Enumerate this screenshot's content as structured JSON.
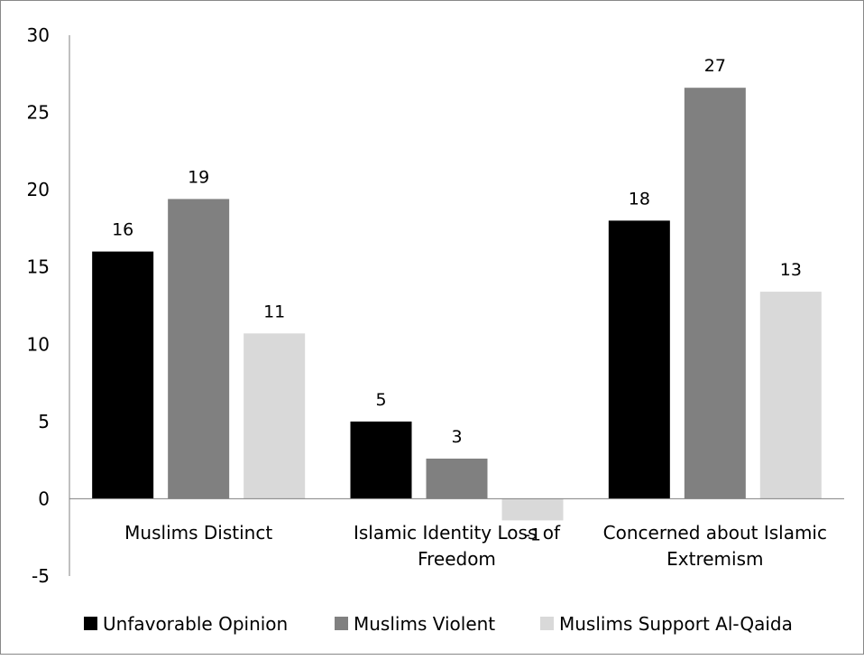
{
  "chart_data": {
    "type": "bar",
    "title": "",
    "xlabel": "",
    "ylabel": "",
    "ylim": [
      -5,
      30
    ],
    "yticks": [
      30,
      25,
      20,
      15,
      10,
      5,
      0,
      -5
    ],
    "grid": false,
    "legend_position": "bottom",
    "categories": [
      [
        "Muslims Distinct"
      ],
      [
        "Islamic Identity Loss of",
        "Freedom"
      ],
      [
        "Concerned about Islamic",
        "Extremism"
      ]
    ],
    "series": [
      {
        "name": "Unfavorable Opinion",
        "color": "#000000",
        "values": [
          16,
          5,
          18
        ],
        "labels": [
          "16",
          "5",
          "18"
        ]
      },
      {
        "name": "Muslims Violent",
        "color": "#808080",
        "values": [
          19.4,
          2.6,
          26.6
        ],
        "labels": [
          "19",
          "3",
          "27"
        ]
      },
      {
        "name": "Muslims Support Al-Qaida",
        "color": "#d9d9d9",
        "values": [
          10.7,
          -1.4,
          13.4
        ],
        "labels": [
          "11",
          "-1",
          "13"
        ]
      }
    ]
  }
}
